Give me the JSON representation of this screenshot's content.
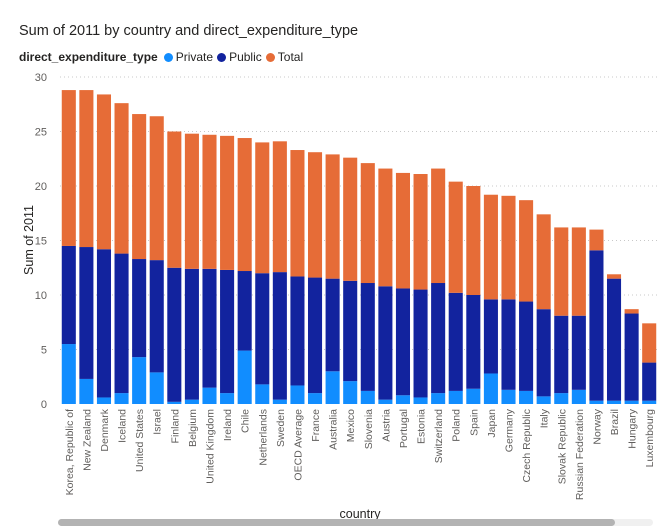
{
  "chart_data": {
    "type": "bar",
    "stacked": true,
    "title": "Sum of 2011 by country and direct_expenditure_type",
    "legend_title": "direct_expenditure_type",
    "legend_position": "top-left",
    "xlabel": "country",
    "ylabel": "Sum of 2011",
    "ylim": [
      0,
      30
    ],
    "yticks": [
      "0",
      "5",
      "10",
      "15",
      "20",
      "25",
      "30"
    ],
    "grid": true,
    "categories": [
      "Korea, Republic of",
      "New Zealand",
      "Denmark",
      "Iceland",
      "United States",
      "Israel",
      "Finland",
      "Belgium",
      "United Kingdom",
      "Ireland",
      "Chile",
      "Netherlands",
      "Sweden",
      "OECD Average",
      "France",
      "Australia",
      "Mexico",
      "Slovenia",
      "Austria",
      "Portugal",
      "Estonia",
      "Switzerland",
      "Poland",
      "Spain",
      "Japan",
      "Germany",
      "Czech Republic",
      "Italy",
      "Slovak Republic",
      "Russian Federation",
      "Norway",
      "Brazil",
      "Hungary",
      "Luxembourg"
    ],
    "series": [
      {
        "name": "Private",
        "color": "#118DFF",
        "values": [
          5.5,
          2.3,
          0.6,
          1.0,
          4.3,
          2.9,
          0.2,
          0.4,
          1.5,
          1.0,
          4.9,
          1.8,
          0.4,
          1.7,
          1.0,
          3.0,
          2.1,
          1.2,
          0.4,
          0.8,
          0.6,
          1.0,
          1.2,
          1.4,
          2.8,
          1.3,
          1.2,
          0.7,
          1.0,
          1.3,
          0.3,
          0.3,
          0.3,
          0.3
        ]
      },
      {
        "name": "Public",
        "color": "#12239E",
        "values": [
          9.0,
          12.1,
          13.6,
          12.8,
          9.0,
          10.3,
          12.3,
          12.0,
          10.9,
          11.3,
          7.3,
          10.2,
          11.7,
          10.0,
          10.6,
          8.5,
          9.2,
          9.9,
          10.4,
          9.8,
          9.9,
          10.1,
          9.0,
          8.6,
          6.8,
          8.3,
          8.2,
          8.0,
          7.1,
          6.8,
          13.8,
          11.2,
          8.0,
          3.5
        ]
      },
      {
        "name": "Total",
        "color": "#E66C37",
        "values": [
          14.3,
          14.4,
          14.2,
          13.8,
          13.3,
          13.2,
          12.5,
          12.4,
          12.3,
          12.3,
          12.2,
          12.0,
          12.0,
          11.6,
          11.5,
          11.4,
          11.3,
          11.0,
          10.8,
          10.6,
          10.6,
          10.5,
          10.2,
          10.0,
          9.6,
          9.5,
          9.3,
          8.7,
          8.1,
          8.1,
          1.9,
          0.4,
          0.4,
          3.6
        ]
      }
    ]
  }
}
